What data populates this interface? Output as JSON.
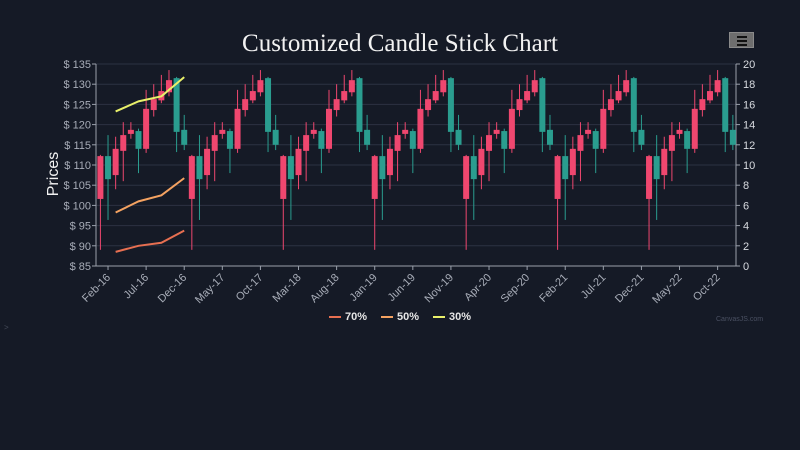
{
  "header": {
    "title": "Customized Candle Stick Chart",
    "menu_icon": "hamburger-menu-icon"
  },
  "credit": "CanvasJS.com",
  "colors": {
    "background": "#151a26",
    "increasing": "#2a9d8f",
    "decreasing": "#ef476f",
    "grid": "#2c3242",
    "axis": "#9aa0ab",
    "series_70": "#e76f51",
    "series_50": "#f4a261",
    "series_30": "#e9f06a"
  },
  "legend": [
    {
      "label": "70%",
      "color": "#e76f51"
    },
    {
      "label": "50%",
      "color": "#f4a261"
    },
    {
      "label": "30%",
      "color": "#e9f06a"
    }
  ],
  "chart_data": {
    "type": "candlestick",
    "title": "Customized Candle Stick Chart",
    "ylabel": "Prices",
    "y_prefix": "$ ",
    "ylim": [
      85,
      135
    ],
    "yticks": [
      85,
      90,
      95,
      100,
      105,
      110,
      115,
      120,
      125,
      130,
      135
    ],
    "y2lim": [
      0,
      20
    ],
    "y2ticks": [
      0,
      2,
      4,
      6,
      8,
      10,
      12,
      14,
      16,
      18,
      20
    ],
    "xticks": [
      "Feb-16",
      "Jul-16",
      "Dec-16",
      "May-17",
      "Oct-17",
      "Mar-18",
      "Aug-18",
      "Jan-19",
      "Jun-19",
      "Nov-19",
      "Apr-20",
      "Sep-20",
      "Feb-21",
      "Jul-21",
      "Dec-21",
      "May-22",
      "Oct-22"
    ],
    "x_range": "Jan-16 to Dec-22 (monthly)",
    "grid": true,
    "legend_position": "bottom",
    "candles_note": "Same 12-month OHLC pattern repeats for each year 2016-2022",
    "yearly_pattern_ohlc": [
      {
        "month": "Jan",
        "open": 112.2,
        "high": 112.5,
        "low": 89.0,
        "close": 101.6
      },
      {
        "month": "Feb",
        "open": 106.5,
        "high": 117.4,
        "low": 96.4,
        "close": 112.2
      },
      {
        "month": "Mar",
        "open": 114.0,
        "high": 117.0,
        "low": 104.0,
        "close": 107.5
      },
      {
        "month": "Apr",
        "open": 117.4,
        "high": 120.6,
        "low": 106.0,
        "close": 113.5
      },
      {
        "month": "May",
        "open": 118.7,
        "high": 120.6,
        "low": 116.5,
        "close": 117.7
      },
      {
        "month": "Jun",
        "open": 114.0,
        "high": 119.0,
        "low": 108.0,
        "close": 118.4
      },
      {
        "month": "Jul",
        "open": 123.9,
        "high": 128.6,
        "low": 113.0,
        "close": 114.0
      },
      {
        "month": "Aug",
        "open": 126.3,
        "high": 130.0,
        "low": 122.0,
        "close": 123.6
      },
      {
        "month": "Sep",
        "open": 128.3,
        "high": 132.3,
        "low": 125.3,
        "close": 126.0
      },
      {
        "month": "Oct",
        "open": 131.0,
        "high": 133.5,
        "low": 127.0,
        "close": 128.0
      },
      {
        "month": "Nov",
        "open": 118.2,
        "high": 131.8,
        "low": 113.2,
        "close": 131.5
      },
      {
        "month": "Dec",
        "open": 115.0,
        "high": 122.4,
        "low": 113.7,
        "close": 118.7
      }
    ],
    "years": [
      2016,
      2017,
      2018,
      2019,
      2020,
      2021,
      2022
    ],
    "series": [
      {
        "name": "70%",
        "axis": "secondary",
        "x": [
          "Mar-16",
          "Jun-16",
          "Sep-16",
          "Dec-16"
        ],
        "values": [
          1.4,
          2.0,
          2.3,
          3.5
        ]
      },
      {
        "name": "50%",
        "axis": "secondary",
        "x": [
          "Mar-16",
          "Jun-16",
          "Sep-16",
          "Dec-16"
        ],
        "values": [
          5.3,
          6.4,
          7.0,
          8.7
        ]
      },
      {
        "name": "30%",
        "axis": "secondary",
        "x": [
          "Mar-16",
          "Jun-16",
          "Sep-16",
          "Dec-16"
        ],
        "values": [
          15.3,
          16.3,
          16.8,
          18.7
        ]
      }
    ]
  }
}
